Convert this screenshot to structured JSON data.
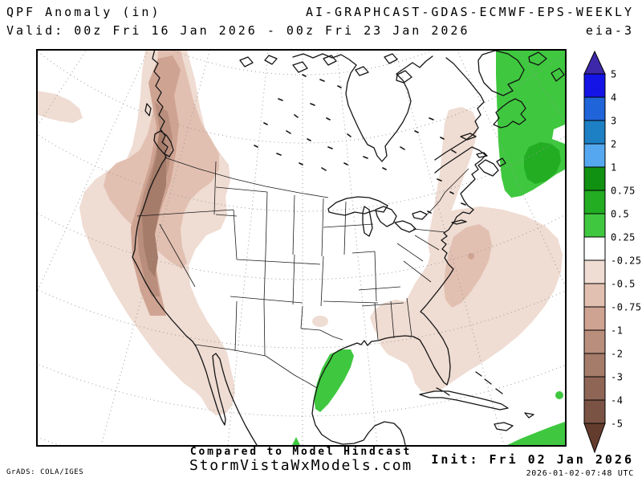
{
  "header": {
    "product_title": "QPF Anomaly (in)",
    "model_title": "AI-GRAPHCAST-GDAS-ECMWF-EPS-WEEKLY",
    "valid_range": "Valid: 00z Fri 16 Jan 2026 - 00z Fri 23 Jan 2026",
    "ensemble_member": "eia-3"
  },
  "footer": {
    "comparison_note": "Compared to Model Hindcast",
    "site_name": "StormVistaWxModels.com",
    "grads_credit": "GrADS: COLA/IGES",
    "init_label": "Init: Fri 02 Jan 2026",
    "init_timestamp": "2026-01-02-07:48 UTC"
  },
  "legend": {
    "units": "in",
    "tick_labels": [
      "5",
      "4",
      "3",
      "2",
      "1",
      "0.75",
      "0.5",
      "0.25",
      "-0.25",
      "-0.5",
      "-0.75",
      "-1",
      "-2",
      "-3",
      "-4",
      "-5"
    ],
    "segment_colors": [
      "#1414e6",
      "#1f64d8",
      "#1d80c4",
      "#55a8f0",
      "#119111",
      "#22ad22",
      "#3fc83f",
      "#ffffff",
      "#efdcd2",
      "#e2c0b1",
      "#cfa392",
      "#b98e7c",
      "#a57b69",
      "#8f6656",
      "#7b5344"
    ],
    "arrow_top_color": "#3c28a8",
    "arrow_bottom_color": "#643c2e"
  },
  "palette": {
    "background": "#ffffff",
    "coastline": "#141414",
    "gridline": "#9a9a9a",
    "tan1": "#efdcd2",
    "tan2": "#e2c0b1",
    "tan3": "#cfa392",
    "tan4": "#b98e7c",
    "tan5": "#a57b69",
    "green_light": "#3fc83f",
    "green_mid": "#22ad22"
  },
  "map_data": {
    "type": "filled-contour-map",
    "projection": "polar stereographic over North America",
    "variable": "7-day QPF anomaly (inches) vs model hindcast",
    "anomaly_regions": [
      {
        "area": "US/Canada West Coast and offshore NE Pacific",
        "sign": "dry",
        "peak_value_in": "-2 to -3"
      },
      {
        "area": "Far eastern Pacific (left map edge)",
        "sign": "dry",
        "peak_value_in": "-0.25 to -0.5"
      },
      {
        "area": "Western Atlantic off US East Coast",
        "sign": "dry",
        "peak_value_in": "-0.75 to -1"
      },
      {
        "area": "Southeast US: Georgia and Florida coasts",
        "sign": "dry",
        "peak_value_in": "-0.25 to -0.5"
      },
      {
        "area": "Quebec / Canadian Maritimes",
        "sign": "dry",
        "peak_value_in": "-0.25 to -0.5"
      },
      {
        "area": "North Atlantic east of Newfoundland",
        "sign": "wet",
        "peak_value_in": "+0.5 to +0.75"
      },
      {
        "area": "Western Gulf of Mexico off Texas",
        "sign": "wet",
        "peak_value_in": "+0.25 to +0.5"
      },
      {
        "area": "Caribbean, bottom-right map corner",
        "sign": "wet",
        "peak_value_in": "+0.25 to +0.5"
      }
    ]
  }
}
